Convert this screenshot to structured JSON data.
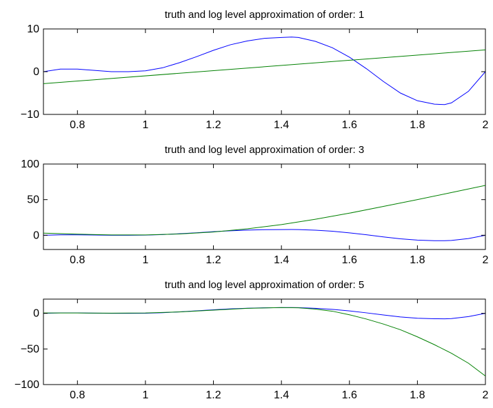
{
  "chart_data": [
    {
      "type": "line",
      "title": "truth and log level approximation of order: 1",
      "xlabel": "",
      "ylabel": "",
      "xlim": [
        0.7,
        2.0
      ],
      "ylim": [
        -10,
        10
      ],
      "xticks": [
        0.8,
        1,
        1.2,
        1.4,
        1.6,
        1.8,
        2
      ],
      "xtick_labels": [
        "0.8",
        "1",
        "1.2",
        "1.4",
        "1.6",
        "1.8",
        "2"
      ],
      "yticks": [
        -10,
        0,
        10
      ],
      "ytick_labels": [
        "−10",
        "0",
        "10"
      ],
      "grid": false,
      "series": [
        {
          "color": "#0000ff",
          "x": [
            0.7,
            0.75,
            0.8,
            0.85,
            0.9,
            0.95,
            1.0,
            1.05,
            1.1,
            1.15,
            1.2,
            1.25,
            1.3,
            1.35,
            1.4,
            1.43,
            1.45,
            1.5,
            1.55,
            1.6,
            1.65,
            1.7,
            1.75,
            1.8,
            1.85,
            1.88,
            1.9,
            1.95,
            2.0
          ],
          "y": [
            0,
            0.6,
            0.6,
            0.3,
            0,
            0,
            0.2,
            0.9,
            2.1,
            3.5,
            5.0,
            6.3,
            7.2,
            7.8,
            8.0,
            8.1,
            8.0,
            7.1,
            5.6,
            3.4,
            0.7,
            -2.3,
            -5.0,
            -6.8,
            -7.6,
            -7.7,
            -7.3,
            -4.6,
            0
          ]
        },
        {
          "color": "#008000",
          "x": [
            0.7,
            2.0
          ],
          "y": [
            -2.8,
            5.1
          ]
        }
      ]
    },
    {
      "type": "line",
      "title": "truth and log level approximation of order: 3",
      "xlabel": "",
      "ylabel": "",
      "xlim": [
        0.7,
        2.0
      ],
      "ylim": [
        -20,
        100
      ],
      "xticks": [
        0.8,
        1,
        1.2,
        1.4,
        1.6,
        1.8,
        2
      ],
      "xtick_labels": [
        "0.8",
        "1",
        "1.2",
        "1.4",
        "1.6",
        "1.8",
        "2"
      ],
      "yticks": [
        0,
        50,
        100
      ],
      "ytick_labels": [
        "0",
        "50",
        "100"
      ],
      "grid": false,
      "series": [
        {
          "color": "#0000ff",
          "x": [
            0.7,
            0.75,
            0.8,
            0.85,
            0.9,
            0.95,
            1.0,
            1.05,
            1.1,
            1.15,
            1.2,
            1.25,
            1.3,
            1.35,
            1.4,
            1.43,
            1.45,
            1.5,
            1.55,
            1.6,
            1.65,
            1.7,
            1.75,
            1.8,
            1.85,
            1.88,
            1.9,
            1.95,
            2.0
          ],
          "y": [
            0,
            0.6,
            0.6,
            0.3,
            0,
            0,
            0.2,
            0.9,
            2.1,
            3.5,
            5.0,
            6.3,
            7.2,
            7.8,
            8.0,
            8.1,
            8.0,
            7.1,
            5.6,
            3.4,
            0.7,
            -2.3,
            -5.0,
            -6.8,
            -7.6,
            -7.7,
            -7.3,
            -4.6,
            0
          ]
        },
        {
          "color": "#008000",
          "x": [
            0.7,
            0.8,
            0.9,
            1.0,
            1.1,
            1.2,
            1.3,
            1.4,
            1.5,
            1.6,
            1.7,
            1.8,
            1.9,
            2.0
          ],
          "y": [
            3,
            1.5,
            0.5,
            0.5,
            1.8,
            4.5,
            9,
            15,
            22.5,
            31,
            40.5,
            50,
            60,
            70
          ]
        }
      ]
    },
    {
      "type": "line",
      "title": "truth and log level approximation of order: 5",
      "xlabel": "",
      "ylabel": "",
      "xlim": [
        0.7,
        2.0
      ],
      "ylim": [
        -100,
        20
      ],
      "xticks": [
        0.8,
        1,
        1.2,
        1.4,
        1.6,
        1.8,
        2
      ],
      "xtick_labels": [
        "0.8",
        "1",
        "1.2",
        "1.4",
        "1.6",
        "1.8",
        "2"
      ],
      "yticks": [
        -100,
        -50,
        0
      ],
      "ytick_labels": [
        "−100",
        "−50",
        "0"
      ],
      "grid": false,
      "series": [
        {
          "color": "#0000ff",
          "x": [
            0.7,
            0.75,
            0.8,
            0.85,
            0.9,
            0.95,
            1.0,
            1.05,
            1.1,
            1.15,
            1.2,
            1.25,
            1.3,
            1.35,
            1.4,
            1.43,
            1.45,
            1.5,
            1.55,
            1.6,
            1.65,
            1.7,
            1.75,
            1.8,
            1.85,
            1.88,
            1.9,
            1.95,
            2.0
          ],
          "y": [
            0,
            0.6,
            0.6,
            0.3,
            0,
            0,
            0.2,
            0.9,
            2.1,
            3.5,
            5.0,
            6.3,
            7.2,
            7.8,
            8.0,
            8.1,
            8.0,
            7.1,
            5.6,
            3.4,
            0.7,
            -2.3,
            -5.0,
            -6.8,
            -7.6,
            -7.7,
            -7.3,
            -4.6,
            0
          ]
        },
        {
          "color": "#008000",
          "x": [
            0.7,
            0.8,
            0.9,
            1.0,
            1.1,
            1.2,
            1.3,
            1.4,
            1.45,
            1.5,
            1.55,
            1.6,
            1.65,
            1.7,
            1.75,
            1.8,
            1.85,
            1.9,
            1.95,
            2.0
          ],
          "y": [
            0.5,
            0.5,
            0.3,
            0.5,
            2,
            4.5,
            7,
            8.2,
            7.8,
            6,
            3,
            -2,
            -8,
            -15,
            -23,
            -33,
            -44,
            -56,
            -70,
            -88
          ]
        }
      ]
    }
  ]
}
